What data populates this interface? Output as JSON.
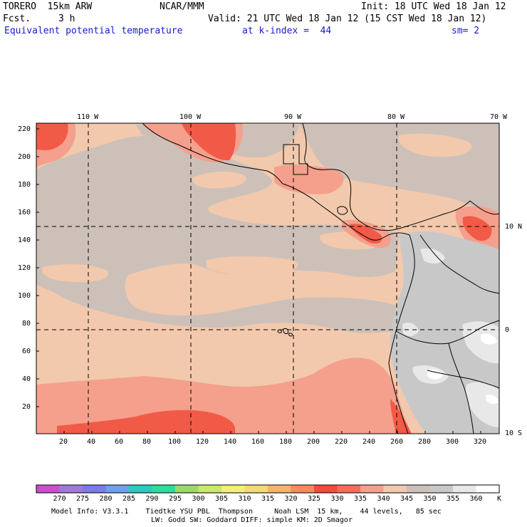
{
  "header": {
    "model_name": "TORERO  15km ARW",
    "fcst_label": "Fcst.",
    "fcst_value": "3 h",
    "center": "NCAR/MMM",
    "init": "Init: 18 UTC Wed 18 Jan 12",
    "valid": "Valid: 21 UTC Wed 18 Jan 12 (15 CST Wed 18 Jan 12)",
    "field": "Equivalent potential temperature",
    "level": "at k-index =  44",
    "smoothing": "sm= 2"
  },
  "map": {
    "lon_labels": [
      "110 W",
      "100 W",
      "90 W",
      "80 W",
      "70 W"
    ],
    "lat_labels": [
      "10 N",
      "0",
      "10 S"
    ],
    "y_ticks": [
      "220",
      "200",
      "180",
      "160",
      "140",
      "120",
      "100",
      "80",
      "60",
      "40",
      "20"
    ],
    "x_ticks": [
      "20",
      "40",
      "60",
      "80",
      "100",
      "120",
      "140",
      "160",
      "180",
      "200",
      "220",
      "240",
      "260",
      "280",
      "300",
      "320"
    ],
    "field_colors": {
      "c330": "#f25a48",
      "c335": "#f4907a",
      "c340": "#f2c9ad",
      "c345": "#cdc0b8",
      "c350": "#c8c8c8",
      "c355": "#e8e8e8",
      "c360": "#ffffff"
    }
  },
  "colorbar": {
    "labels": [
      "270",
      "275",
      "280",
      "285",
      "290",
      "295",
      "300",
      "305",
      "310",
      "315",
      "320",
      "325",
      "330",
      "335",
      "340",
      "345",
      "350",
      "355",
      "360"
    ],
    "colors": [
      "#c94fcc",
      "#a07ad6",
      "#7b7be8",
      "#6fa0ea",
      "#2ec8c0",
      "#2edc9c",
      "#9ad86a",
      "#c8e870",
      "#f2f07a",
      "#f4d87a",
      "#f4b46e",
      "#f48c5c",
      "#f24a3c",
      "#f46e5a",
      "#f4a08c",
      "#f2c9ad",
      "#cdc0b8",
      "#c8c8c8",
      "#e8e8e8",
      "#ffffff"
    ],
    "unit": "K"
  },
  "footer": {
    "line1": "Model Info: V3.3.1    Tiedtke YSU PBL  Thompson     Noah LSM  15 km,    44 levels,   85 sec",
    "line2": "LW: Godd SW: Goddard DIFF: simple KM: 2D Smagor"
  }
}
